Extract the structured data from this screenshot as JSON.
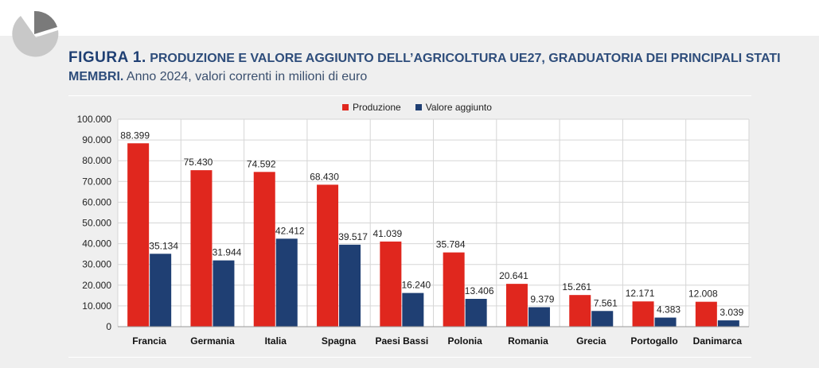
{
  "header": {
    "figure_label": "FIGURA 1.",
    "title_bold": "PRODUZIONE E VALORE AGGIUNTO DELL’AGRICOLTURA UE27, GRADUATORIA DEI PRINCIPALI STATI MEMBRI.",
    "subtitle": "Anno 2024, valori correnti in milioni di euro"
  },
  "colors": {
    "produzione": "#e0271e",
    "valore_aggiunto": "#1f3f73",
    "grid": "#d6d6d6",
    "panel": "#efefef"
  },
  "chart_data": {
    "type": "bar",
    "categories": [
      "Francia",
      "Germania",
      "Italia",
      "Spagna",
      "Paesi Bassi",
      "Polonia",
      "Romania",
      "Grecia",
      "Portogallo",
      "Danimarca"
    ],
    "series": [
      {
        "name": "Produzione",
        "values": [
          88399,
          75430,
          74592,
          68430,
          41039,
          35784,
          20641,
          15261,
          12171,
          12008
        ],
        "labels": [
          "88.399",
          "75.430",
          "74.592",
          "68.430",
          "41.039",
          "35.784",
          "20.641",
          "15.261",
          "12.171",
          "12.008"
        ]
      },
      {
        "name": "Valore aggiunto",
        "values": [
          35134,
          31944,
          42412,
          39517,
          16240,
          13406,
          9379,
          7561,
          4383,
          3039
        ],
        "labels": [
          "35.134",
          "31.944",
          "42.412",
          "39.517",
          "16.240",
          "13.406",
          "9.379",
          "7.561",
          "4.383",
          "3.039"
        ]
      }
    ],
    "ylim": [
      0,
      100000
    ],
    "yticks": [
      "0",
      "10.000",
      "20.000",
      "30.000",
      "40.000",
      "50.000",
      "60.000",
      "70.000",
      "80.000",
      "90.000",
      "100.000"
    ],
    "grid": true,
    "legend_position": "top-center"
  }
}
